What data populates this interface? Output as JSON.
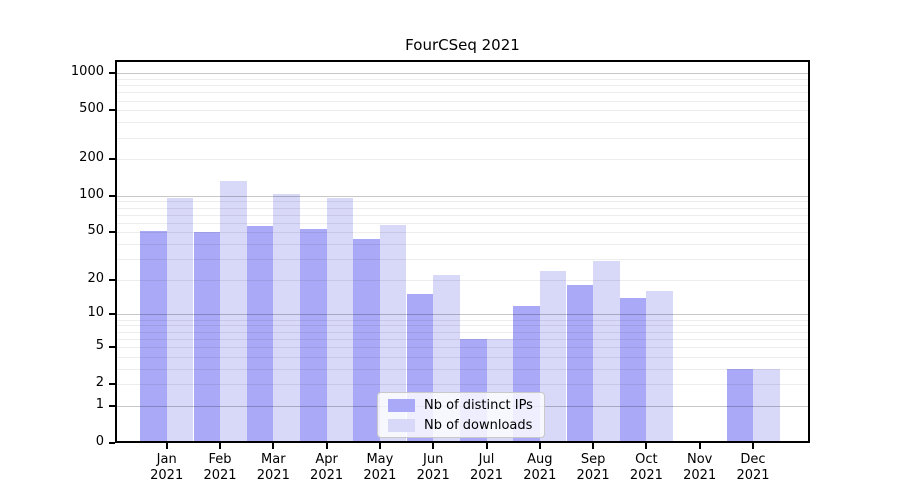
{
  "chart_data": {
    "type": "bar",
    "title": "FourCSeq 2021",
    "categories": [
      "Jan 2021",
      "Feb 2021",
      "Mar 2021",
      "Apr 2021",
      "May 2021",
      "Jun 2021",
      "Jul 2021",
      "Aug 2021",
      "Sep 2021",
      "Oct 2021",
      "Nov 2021",
      "Dec 2021"
    ],
    "series": [
      {
        "name": "Nb of distinct IPs",
        "color": "#a9a9f7",
        "values": [
          51,
          50,
          56,
          53,
          44,
          15,
          6,
          12,
          18,
          14,
          0,
          3
        ]
      },
      {
        "name": "Nb of downloads",
        "color": "#d8d8f8",
        "values": [
          96,
          133,
          103,
          96,
          58,
          22,
          6,
          24,
          29,
          16,
          0,
          3
        ]
      }
    ],
    "xlabel": "",
    "ylabel": "",
    "yscale": "log1p",
    "yticks": [
      0,
      1,
      2,
      5,
      10,
      20,
      50,
      100,
      200,
      500,
      1000
    ],
    "ylim": [
      0,
      1280
    ],
    "grid": true,
    "grid_major_values": [
      1,
      10,
      100,
      1000
    ],
    "legend_position": "bottom-center",
    "colors": {
      "axis": "#000000",
      "background": "#ffffff",
      "grid_minor": "rgba(0,0,0,0.07)",
      "grid_major": "rgba(0,0,0,0.22)"
    }
  }
}
